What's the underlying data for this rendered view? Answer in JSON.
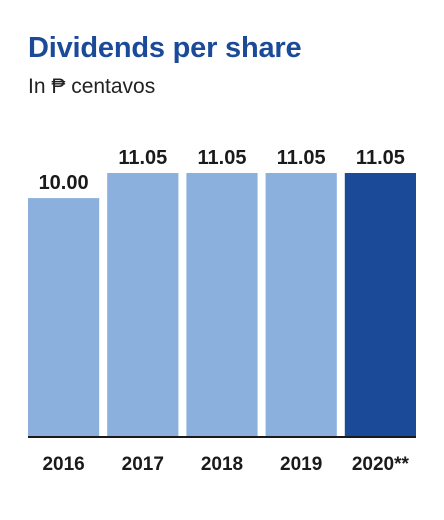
{
  "title": "Dividends per share",
  "subtitle": "In ₱ centavos",
  "colors": {
    "title": "#1b4a98",
    "bar_light": "#8cb0dd",
    "bar_highlight": "#1b4a98"
  },
  "chart_data": {
    "type": "bar",
    "title": "Dividends per share",
    "subtitle": "In ₱ centavos",
    "categories": [
      "2016",
      "2017",
      "2018",
      "2019",
      "2020**"
    ],
    "values": [
      10.0,
      11.05,
      11.05,
      11.05,
      11.05
    ],
    "value_labels": [
      "10.00",
      "11.05",
      "11.05",
      "11.05",
      "11.05"
    ],
    "highlight_index": 4,
    "ylim": [
      0,
      11.05
    ],
    "grid": false,
    "legend": "none"
  }
}
